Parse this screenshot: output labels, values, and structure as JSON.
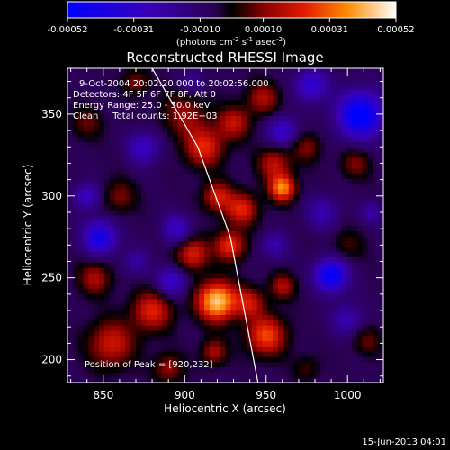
{
  "chart_data": {
    "type": "heatmap",
    "title": "Reconstructed RHESSI Image",
    "xlabel": "Heliocentric X (arcsec)",
    "ylabel": "Heliocentric Y (arcsec)",
    "xlim": [
      828,
      1022
    ],
    "ylim": [
      186,
      378
    ],
    "x_ticks": [
      850,
      900,
      950,
      1000
    ],
    "y_ticks": [
      200,
      250,
      300,
      350
    ],
    "x_tick_labels": [
      "850",
      "900",
      "950",
      "1000"
    ],
    "y_tick_labels": [
      "200",
      "250",
      "300",
      "350"
    ],
    "colorbar": {
      "range": [
        -0.00052,
        0.00052
      ],
      "ticks": [
        -0.00052,
        -0.00031,
        -0.0001,
        0.0001,
        0.00031,
        0.00052
      ],
      "tick_labels": [
        "-0.00052",
        "-0.00031",
        "-0.00010",
        "0.00010",
        "0.00031",
        "0.00052"
      ],
      "unit_label": "(photons cm",
      "unit_exp1": "-2",
      "unit_mid": " s",
      "unit_exp2": "-1",
      "unit_mid2": " asec",
      "unit_exp3": "-2",
      "unit_end": ")"
    },
    "annotations": {
      "time_range": "9-Oct-2004 20:02:20.000 to 20:02:56.000",
      "detectors": "Detectors: 4F 5F 6F 7F 8F, Att 0",
      "energy": "Energy Range: 25.0 - 50.0 keV",
      "clean": "Clean     Total counts: 1.92E+03",
      "peak": "Position of Peak = [920,232]"
    },
    "peak": [
      920,
      232
    ],
    "limb_line": [
      [
        880,
        378
      ],
      [
        908,
        330
      ],
      [
        928,
        275
      ],
      [
        945,
        186
      ]
    ],
    "blobs": [
      {
        "x": 920,
        "y": 236,
        "r": 12,
        "v": 1.0
      },
      {
        "x": 905,
        "y": 265,
        "r": 10,
        "v": 0.55
      },
      {
        "x": 928,
        "y": 270,
        "r": 9,
        "v": 0.6
      },
      {
        "x": 935,
        "y": 292,
        "r": 10,
        "v": 0.55
      },
      {
        "x": 920,
        "y": 300,
        "r": 9,
        "v": 0.5
      },
      {
        "x": 912,
        "y": 330,
        "r": 12,
        "v": 0.55
      },
      {
        "x": 930,
        "y": 345,
        "r": 10,
        "v": 0.45
      },
      {
        "x": 960,
        "y": 305,
        "r": 8,
        "v": 0.8
      },
      {
        "x": 955,
        "y": 320,
        "r": 10,
        "v": 0.45
      },
      {
        "x": 948,
        "y": 360,
        "r": 10,
        "v": 0.4
      },
      {
        "x": 900,
        "y": 350,
        "r": 14,
        "v": 0.35
      },
      {
        "x": 855,
        "y": 210,
        "r": 14,
        "v": 0.5
      },
      {
        "x": 880,
        "y": 230,
        "r": 12,
        "v": 0.55
      },
      {
        "x": 845,
        "y": 250,
        "r": 10,
        "v": 0.4
      },
      {
        "x": 860,
        "y": 300,
        "r": 10,
        "v": 0.3
      },
      {
        "x": 840,
        "y": 345,
        "r": 10,
        "v": 0.25
      },
      {
        "x": 870,
        "y": 370,
        "r": 8,
        "v": 0.3
      },
      {
        "x": 950,
        "y": 215,
        "r": 12,
        "v": 0.65
      },
      {
        "x": 940,
        "y": 235,
        "r": 9,
        "v": 0.45
      },
      {
        "x": 960,
        "y": 245,
        "r": 8,
        "v": 0.4
      },
      {
        "x": 975,
        "y": 330,
        "r": 9,
        "v": 0.3
      },
      {
        "x": 1005,
        "y": 320,
        "r": 9,
        "v": 0.3
      },
      {
        "x": 1000,
        "y": 270,
        "r": 10,
        "v": 0.2
      },
      {
        "x": 1012,
        "y": 212,
        "r": 9,
        "v": 0.25
      },
      {
        "x": 975,
        "y": 195,
        "r": 8,
        "v": 0.2
      },
      {
        "x": 890,
        "y": 195,
        "r": 9,
        "v": 0.35
      },
      {
        "x": 918,
        "y": 205,
        "r": 8,
        "v": 0.4
      },
      {
        "x": 990,
        "y": 252,
        "r": 10,
        "v": -0.9
      },
      {
        "x": 1008,
        "y": 350,
        "r": 14,
        "v": -0.95
      },
      {
        "x": 978,
        "y": 368,
        "r": 10,
        "v": -0.55
      },
      {
        "x": 960,
        "y": 340,
        "r": 9,
        "v": -0.5
      },
      {
        "x": 848,
        "y": 275,
        "r": 10,
        "v": -0.75
      },
      {
        "x": 840,
        "y": 300,
        "r": 8,
        "v": -0.45
      },
      {
        "x": 892,
        "y": 248,
        "r": 9,
        "v": -0.5
      },
      {
        "x": 895,
        "y": 280,
        "r": 9,
        "v": -0.45
      },
      {
        "x": 875,
        "y": 330,
        "r": 10,
        "v": -0.45
      },
      {
        "x": 985,
        "y": 290,
        "r": 10,
        "v": -0.35
      },
      {
        "x": 1000,
        "y": 225,
        "r": 10,
        "v": -0.35
      },
      {
        "x": 955,
        "y": 270,
        "r": 8,
        "v": -0.35
      },
      {
        "x": 870,
        "y": 260,
        "r": 8,
        "v": -0.3
      },
      {
        "x": 905,
        "y": 370,
        "r": 8,
        "v": -0.25
      },
      {
        "x": 1015,
        "y": 290,
        "r": 7,
        "v": -0.3
      }
    ]
  },
  "footer": {
    "timestamp": "15-Jun-2013 04:01"
  }
}
